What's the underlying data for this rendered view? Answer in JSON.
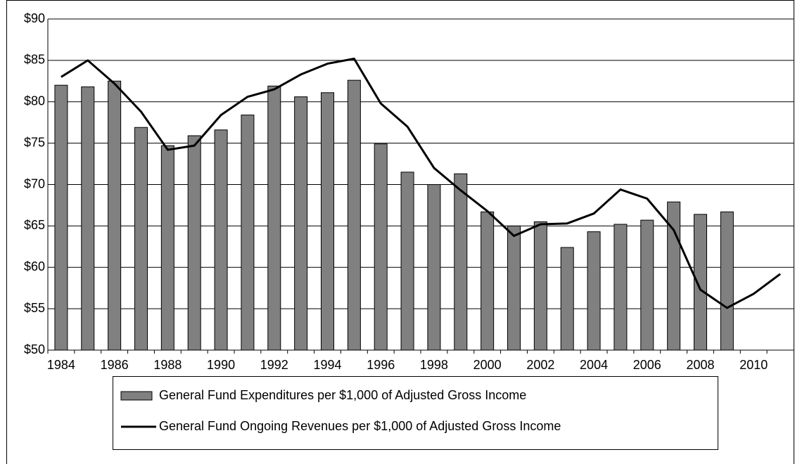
{
  "chart_data": {
    "type": "bar-line",
    "categories": [
      "1984",
      null,
      "1986",
      null,
      "1988",
      null,
      "1990",
      null,
      "1992",
      null,
      "1994",
      null,
      "1996",
      null,
      "1998",
      null,
      "2000",
      null,
      "2002",
      null,
      "2004",
      null,
      "2006",
      null,
      "2008",
      null,
      "2010",
      null
    ],
    "series": [
      {
        "name": "General Fund Expenditures per $1,000 of Adjusted Gross Income",
        "type": "bar",
        "color": "#808080",
        "values": [
          82,
          81.8,
          82.5,
          76.9,
          74.7,
          75.9,
          76.6,
          78.4,
          81.9,
          80.6,
          81.1,
          82.6,
          74.9,
          71.5,
          70,
          71.3,
          66.7,
          65,
          65.5,
          62.4,
          64.3,
          65.2,
          65.7,
          67.9,
          66.4,
          66.7,
          null,
          null
        ]
      },
      {
        "name": "General Fund Ongoing Revenues per $1,000 of Adjusted Gross Income",
        "type": "line",
        "color": "#000000",
        "values": [
          83,
          85,
          82.2,
          78.8,
          74.2,
          74.7,
          78.4,
          80.6,
          81.5,
          83.3,
          84.6,
          85.2,
          79.8,
          77,
          72,
          69.3,
          66.8,
          63.8,
          65.2,
          65.3,
          66.5,
          69.4,
          68.3,
          64.5,
          57.3,
          55.1,
          56.8,
          59.2
        ]
      }
    ],
    "ylim": [
      50,
      90
    ],
    "yticks": [
      {
        "value": 50,
        "label": "$50"
      },
      {
        "value": 55,
        "label": "$55"
      },
      {
        "value": 60,
        "label": "$60"
      },
      {
        "value": 65,
        "label": "$65"
      },
      {
        "value": 70,
        "label": "$70"
      },
      {
        "value": 75,
        "label": "$75"
      },
      {
        "value": 80,
        "label": "$80"
      },
      {
        "value": 85,
        "label": "$85"
      },
      {
        "value": 90,
        "label": "$90"
      }
    ],
    "grid": true,
    "legend": "bottom"
  }
}
